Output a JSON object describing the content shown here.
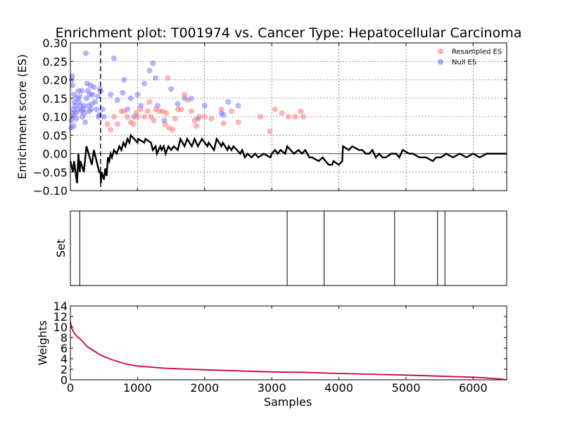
{
  "chart_data": {
    "type": "scatter",
    "title": "Enrichment plot: T001974 vs. Cancer Type: Hepatocellular Carcinoma",
    "xlabel": "Samples",
    "xlim": [
      0,
      6500
    ],
    "xticks": [
      "0",
      "1000",
      "2000",
      "3000",
      "4000",
      "5000",
      "6000"
    ],
    "panels": {
      "es": {
        "ylabel": "Enrichment score (ES)",
        "ylim": [
          -0.1,
          0.3
        ],
        "yticks": [
          "−0.10",
          "−0.05",
          "0.00",
          "0.05",
          "0.10",
          "0.15",
          "0.20",
          "0.25",
          "0.30"
        ],
        "grid": true,
        "legend_position": "top-right",
        "legend": [
          {
            "name": "Resampled ES",
            "color": "#ff7777"
          },
          {
            "name": "Null ES",
            "color": "#6a6aff"
          }
        ],
        "leading_edge_x": 450,
        "running_es": [
          [
            0,
            -0.02
          ],
          [
            40,
            -0.05
          ],
          [
            55,
            -0.02
          ],
          [
            100,
            -0.08
          ],
          [
            120,
            0.0
          ],
          [
            140,
            -0.05
          ],
          [
            150,
            -0.02
          ],
          [
            200,
            -0.05
          ],
          [
            240,
            0.02
          ],
          [
            320,
            -0.03
          ],
          [
            350,
            0.01
          ],
          [
            430,
            -0.05
          ],
          [
            450,
            -0.05
          ],
          [
            455,
            -0.08
          ],
          [
            465,
            -0.05
          ],
          [
            500,
            -0.07
          ],
          [
            520,
            -0.04
          ],
          [
            540,
            -0.06
          ],
          [
            560,
            -0.01
          ],
          [
            580,
            -0.02
          ],
          [
            600,
            0.0
          ],
          [
            620,
            -0.01
          ],
          [
            650,
            0.01
          ],
          [
            690,
            0.0
          ],
          [
            730,
            0.02
          ],
          [
            760,
            0.01
          ],
          [
            790,
            0.03
          ],
          [
            820,
            0.02
          ],
          [
            850,
            0.04
          ],
          [
            880,
            0.03
          ],
          [
            900,
            0.05
          ],
          [
            1000,
            0.03
          ],
          [
            1010,
            0.04
          ],
          [
            1100,
            0.03
          ],
          [
            1120,
            0.04
          ],
          [
            1200,
            0.03
          ],
          [
            1230,
            0.01
          ],
          [
            1270,
            0.02
          ],
          [
            1290,
            0.0
          ],
          [
            1340,
            0.02
          ],
          [
            1360,
            0.01
          ],
          [
            1390,
            0.02
          ],
          [
            1420,
            0.0
          ],
          [
            1460,
            0.02
          ],
          [
            1500,
            0.01
          ],
          [
            1540,
            0.02
          ],
          [
            1600,
            0.01
          ],
          [
            1640,
            0.04
          ],
          [
            1700,
            0.02
          ],
          [
            1740,
            0.04
          ],
          [
            1810,
            0.02
          ],
          [
            1850,
            0.04
          ],
          [
            1900,
            0.02
          ],
          [
            1960,
            0.04
          ],
          [
            2040,
            0.02
          ],
          [
            2060,
            0.03
          ],
          [
            2140,
            0.01
          ],
          [
            2180,
            0.04
          ],
          [
            2250,
            0.02
          ],
          [
            2270,
            0.03
          ],
          [
            2340,
            0.01
          ],
          [
            2360,
            0.02
          ],
          [
            2400,
            0.01
          ],
          [
            2430,
            0.02
          ],
          [
            2530,
            0.0
          ],
          [
            2560,
            0.01
          ],
          [
            2600,
            -0.01
          ],
          [
            2640,
            0.0
          ],
          [
            2700,
            -0.01
          ],
          [
            2750,
            0.0
          ],
          [
            2800,
            -0.01
          ],
          [
            2880,
            0.0
          ],
          [
            2980,
            -0.01
          ],
          [
            3000,
            0.0
          ],
          [
            3050,
            0.01
          ],
          [
            3090,
            0.0
          ],
          [
            3130,
            0.01
          ],
          [
            3200,
            0.0
          ],
          [
            3230,
            0.02
          ],
          [
            3330,
            0.0
          ],
          [
            3400,
            0.01
          ],
          [
            3450,
            0.0
          ],
          [
            3500,
            0.01
          ],
          [
            3560,
            -0.01
          ],
          [
            3600,
            -0.01
          ],
          [
            3700,
            -0.02
          ],
          [
            3760,
            -0.01
          ],
          [
            3800,
            -0.02
          ],
          [
            3850,
            -0.03
          ],
          [
            3900,
            -0.03
          ],
          [
            3920,
            -0.02
          ],
          [
            4000,
            -0.03
          ],
          [
            4050,
            -0.02
          ],
          [
            4060,
            0.02
          ],
          [
            4150,
            0.01
          ],
          [
            4200,
            0.02
          ],
          [
            4300,
            0.01
          ],
          [
            4350,
            0.01
          ],
          [
            4400,
            0.0
          ],
          [
            4450,
            0.0
          ],
          [
            4500,
            0.01
          ],
          [
            4550,
            -0.01
          ],
          [
            4600,
            0.0
          ],
          [
            4650,
            -0.01
          ],
          [
            4700,
            -0.01
          ],
          [
            4780,
            0.0
          ],
          [
            4850,
            0.0
          ],
          [
            4900,
            -0.01
          ],
          [
            4950,
            0.01
          ],
          [
            5050,
            0.0
          ],
          [
            5100,
            0.0
          ],
          [
            5200,
            -0.01
          ],
          [
            5300,
            -0.01
          ],
          [
            5400,
            -0.02
          ],
          [
            5450,
            -0.01
          ],
          [
            5500,
            -0.01
          ],
          [
            5520,
            -0.01
          ],
          [
            5600,
            0.0
          ],
          [
            5700,
            -0.01
          ],
          [
            5800,
            0.0
          ],
          [
            5900,
            -0.01
          ],
          [
            6000,
            0.0
          ],
          [
            6100,
            -0.01
          ],
          [
            6200,
            0.0
          ],
          [
            6300,
            0.0
          ],
          [
            6400,
            0.0
          ],
          [
            6500,
            0.0
          ]
        ],
        "null_es": [
          [
            10,
            0.07
          ],
          [
            15,
            0.09
          ],
          [
            20,
            0.2
          ],
          [
            25,
            0.21
          ],
          [
            30,
            0.185
          ],
          [
            35,
            0.1
          ],
          [
            40,
            0.11
          ],
          [
            45,
            0.12
          ],
          [
            50,
            0.075
          ],
          [
            55,
            0.16
          ],
          [
            60,
            0.14
          ],
          [
            70,
            0.13
          ],
          [
            80,
            0.11
          ],
          [
            90,
            0.095
          ],
          [
            100,
            0.15
          ],
          [
            110,
            0.12
          ],
          [
            120,
            0.17
          ],
          [
            130,
            0.14
          ],
          [
            140,
            0.155
          ],
          [
            150,
            0.13
          ],
          [
            160,
            0.115
          ],
          [
            170,
            0.17
          ],
          [
            180,
            0.1
          ],
          [
            190,
            0.12
          ],
          [
            200,
            0.13
          ],
          [
            210,
            0.11
          ],
          [
            220,
            0.085
          ],
          [
            230,
            0.272
          ],
          [
            240,
            0.15
          ],
          [
            250,
            0.19
          ],
          [
            260,
            0.17
          ],
          [
            270,
            0.13
          ],
          [
            280,
            0.115
          ],
          [
            290,
            0.16
          ],
          [
            300,
            0.185
          ],
          [
            310,
            0.12
          ],
          [
            320,
            0.135
          ],
          [
            330,
            0.16
          ],
          [
            350,
            0.18
          ],
          [
            370,
            0.14
          ],
          [
            390,
            0.12
          ],
          [
            410,
            0.155
          ],
          [
            420,
            0.1
          ],
          [
            430,
            0.105
          ],
          [
            440,
            0.175
          ],
          [
            450,
            0.17
          ],
          [
            480,
            0.12
          ],
          [
            500,
            0.1
          ],
          [
            600,
            0.16
          ],
          [
            650,
            0.258
          ],
          [
            700,
            0.145
          ],
          [
            780,
            0.165
          ],
          [
            800,
            0.2
          ],
          [
            850,
            0.12
          ],
          [
            900,
            0.15
          ],
          [
            950,
            0.1
          ],
          [
            1000,
            0.16
          ],
          [
            1050,
            0.13
          ],
          [
            1100,
            0.19
          ],
          [
            1180,
            0.225
          ],
          [
            1230,
            0.245
          ],
          [
            1270,
            0.205
          ],
          [
            1300,
            0.13
          ],
          [
            1400,
            0.09
          ],
          [
            1500,
            0.175
          ],
          [
            1600,
            0.135
          ],
          [
            1700,
            0.15
          ],
          [
            1800,
            0.15
          ],
          [
            1900,
            0.095
          ],
          [
            2000,
            0.13
          ],
          [
            2250,
            0.11
          ],
          [
            2280,
            0.105
          ],
          [
            2350,
            0.14
          ],
          [
            2500,
            0.13
          ]
        ],
        "resampled_es": [
          [
            550,
            0.08
          ],
          [
            600,
            0.065
          ],
          [
            650,
            0.1
          ],
          [
            700,
            0.08
          ],
          [
            760,
            0.115
          ],
          [
            800,
            0.115
          ],
          [
            850,
            0.1
          ],
          [
            900,
            0.085
          ],
          [
            940,
            0.08
          ],
          [
            980,
            0.11
          ],
          [
            1000,
            0.1
          ],
          [
            1040,
            0.12
          ],
          [
            1100,
            0.1
          ],
          [
            1150,
            0.115
          ],
          [
            1180,
            0.14
          ],
          [
            1200,
            0.1
          ],
          [
            1240,
            0.09
          ],
          [
            1270,
            0.12
          ],
          [
            1320,
            0.115
          ],
          [
            1370,
            0.115
          ],
          [
            1410,
            0.08
          ],
          [
            1430,
            0.11
          ],
          [
            1450,
            0.205
          ],
          [
            1470,
            0.07
          ],
          [
            1520,
            0.065
          ],
          [
            1560,
            0.095
          ],
          [
            1600,
            0.12
          ],
          [
            1650,
            0.12
          ],
          [
            1700,
            0.16
          ],
          [
            1750,
            0.145
          ],
          [
            1800,
            0.115
          ],
          [
            1850,
            0.09
          ],
          [
            1880,
            0.075
          ],
          [
            1920,
            0.1
          ],
          [
            2000,
            0.1
          ],
          [
            2100,
            0.095
          ],
          [
            2250,
            0.12
          ],
          [
            2280,
            0.082
          ],
          [
            2400,
            0.115
          ],
          [
            2500,
            0.085
          ],
          [
            2830,
            0.1
          ],
          [
            2970,
            0.06
          ],
          [
            3050,
            0.12
          ],
          [
            3150,
            0.11
          ],
          [
            3250,
            0.1
          ],
          [
            3350,
            0.1
          ],
          [
            3430,
            0.115
          ],
          [
            3470,
            0.1
          ]
        ]
      },
      "set": {
        "ylabel": "Set",
        "hits": [
          140,
          3230,
          3780,
          4830,
          5470,
          5580
        ]
      },
      "weights": {
        "ylabel": "Weights",
        "ylim": [
          0,
          14
        ],
        "yticks": [
          "0",
          "2",
          "4",
          "6",
          "8",
          "10",
          "12",
          "14"
        ],
        "line_color": "#cc0033",
        "curve": [
          [
            0,
            11
          ],
          [
            20,
            9.8
          ],
          [
            50,
            9
          ],
          [
            100,
            8.2
          ],
          [
            150,
            7.7
          ],
          [
            200,
            7.0
          ],
          [
            250,
            6.3
          ],
          [
            300,
            5.9
          ],
          [
            350,
            5.5
          ],
          [
            400,
            5.1
          ],
          [
            450,
            4.7
          ],
          [
            500,
            4.4
          ],
          [
            600,
            3.9
          ],
          [
            700,
            3.5
          ],
          [
            800,
            3.1
          ],
          [
            900,
            2.8
          ],
          [
            1000,
            2.6
          ],
          [
            1200,
            2.4
          ],
          [
            1400,
            2.2
          ],
          [
            1600,
            2.1
          ],
          [
            1800,
            2.0
          ],
          [
            2000,
            1.9
          ],
          [
            2500,
            1.7
          ],
          [
            3000,
            1.5
          ],
          [
            3500,
            1.4
          ],
          [
            4000,
            1.2
          ],
          [
            4500,
            1.05
          ],
          [
            5000,
            0.9
          ],
          [
            5500,
            0.7
          ],
          [
            6000,
            0.5
          ],
          [
            6200,
            0.35
          ],
          [
            6400,
            0.15
          ],
          [
            6500,
            0.0
          ]
        ]
      }
    }
  }
}
